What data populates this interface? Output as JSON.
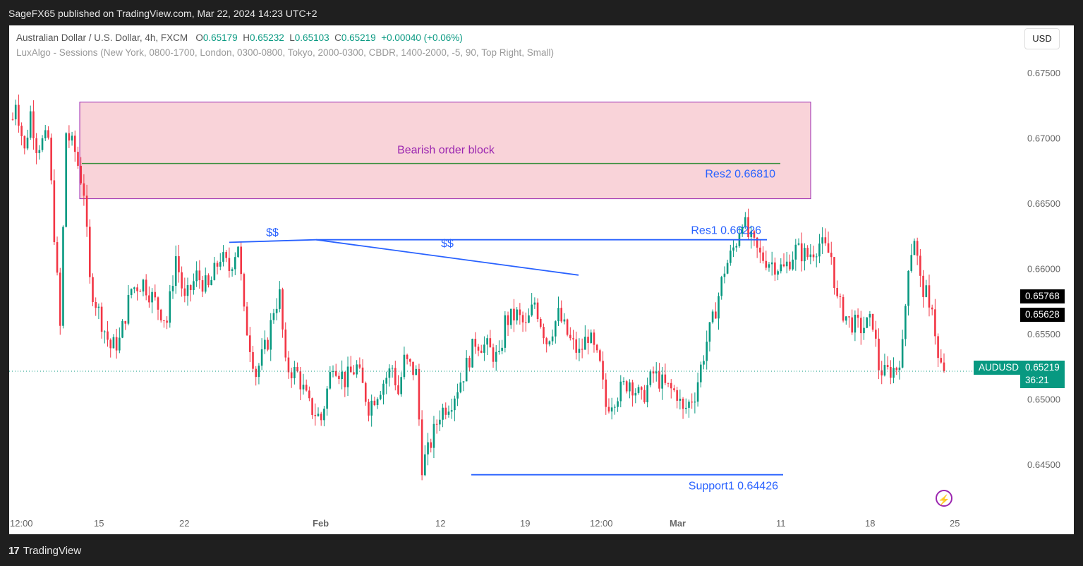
{
  "header": {
    "publisher": "SageFX65 published on TradingView.com, Mar 22, 2024 14:23 UTC+2"
  },
  "legend": {
    "symbol": "Australian Dollar / U.S. Dollar, 4h, FXCM",
    "o_label": "O",
    "o": "0.65179",
    "h_label": "H",
    "h": "0.65232",
    "l_label": "L",
    "l": "0.65103",
    "c_label": "C",
    "c": "0.65219",
    "change": "+0.00040 (+0.06%)",
    "indicator": "LuxAlgo - Sessions (New York, 0800-1700, London, 0300-0800, Tokyo, 2000-0300, CBDR, 1400-2000, -5, 90, Top Right, Small)"
  },
  "currency_button": "USD",
  "footer": {
    "brand": "TradingView",
    "brand_mark": "17"
  },
  "price_labels": {
    "p1": "0.65768",
    "p2": "0.65628",
    "symbol": "AUDUSD",
    "current": "0.65219",
    "countdown": "36:21"
  },
  "colors": {
    "up": "#089981",
    "down": "#f23645",
    "zone_fill": "#f9d3d9",
    "zone_border": "#9c27b0",
    "blue": "#2962ff",
    "green": "#388e3c"
  },
  "chart_data": {
    "type": "candlestick",
    "title": "Australian Dollar / U.S. Dollar, 4h, FXCM",
    "ylim": [
      0.642,
      0.6775
    ],
    "y_ticks": [
      "0.67500",
      "0.67000",
      "0.66500",
      "0.66000",
      "0.65500",
      "0.65000",
      "0.64500"
    ],
    "x_ticks": [
      "12:00",
      "15",
      "22",
      "Feb",
      "12",
      "19",
      "12:00",
      "Mar",
      "11",
      "18",
      "25"
    ],
    "x_ticks_bold": [
      "Feb",
      "Mar"
    ],
    "anchors": [
      [
        0,
        0.6715
      ],
      [
        1,
        0.673
      ],
      [
        4,
        0.669
      ],
      [
        6,
        0.672
      ],
      [
        8,
        0.6695
      ],
      [
        12,
        0.67
      ],
      [
        16,
        0.6555
      ],
      [
        18,
        0.6705
      ],
      [
        21,
        0.669
      ],
      [
        24,
        0.666
      ],
      [
        26,
        0.659
      ],
      [
        30,
        0.656
      ],
      [
        33,
        0.654
      ],
      [
        36,
        0.6545
      ],
      [
        40,
        0.6585
      ],
      [
        44,
        0.659
      ],
      [
        48,
        0.6575
      ],
      [
        52,
        0.656
      ],
      [
        55,
        0.661
      ],
      [
        58,
        0.6575
      ],
      [
        62,
        0.6595
      ],
      [
        66,
        0.6585
      ],
      [
        70,
        0.661
      ],
      [
        73,
        0.66
      ],
      [
        76,
        0.662
      ],
      [
        78,
        0.6565
      ],
      [
        82,
        0.652
      ],
      [
        86,
        0.6545
      ],
      [
        88,
        0.657
      ],
      [
        90,
        0.658
      ],
      [
        92,
        0.6525
      ],
      [
        96,
        0.652
      ],
      [
        100,
        0.6495
      ],
      [
        104,
        0.6485
      ],
      [
        108,
        0.653
      ],
      [
        112,
        0.6515
      ],
      [
        116,
        0.6525
      ],
      [
        120,
        0.6495
      ],
      [
        124,
        0.651
      ],
      [
        128,
        0.6525
      ],
      [
        130,
        0.6505
      ],
      [
        132,
        0.653
      ],
      [
        136,
        0.652
      ],
      [
        138,
        0.645
      ],
      [
        140,
        0.646
      ],
      [
        144,
        0.649
      ],
      [
        148,
        0.65
      ],
      [
        152,
        0.652
      ],
      [
        156,
        0.6545
      ],
      [
        160,
        0.654
      ],
      [
        164,
        0.653
      ],
      [
        166,
        0.656
      ],
      [
        170,
        0.6565
      ],
      [
        173,
        0.6555
      ],
      [
        176,
        0.6575
      ],
      [
        180,
        0.6545
      ],
      [
        184,
        0.6565
      ],
      [
        188,
        0.6545
      ],
      [
        191,
        0.6535
      ],
      [
        194,
        0.655
      ],
      [
        198,
        0.6525
      ],
      [
        200,
        0.6495
      ],
      [
        204,
        0.6505
      ],
      [
        208,
        0.6515
      ],
      [
        212,
        0.65
      ],
      [
        216,
        0.652
      ],
      [
        220,
        0.651
      ],
      [
        224,
        0.6505
      ],
      [
        226,
        0.649
      ],
      [
        230,
        0.6505
      ],
      [
        234,
        0.6545
      ],
      [
        236,
        0.656
      ],
      [
        240,
        0.66
      ],
      [
        242,
        0.661
      ],
      [
        244,
        0.6622
      ],
      [
        246,
        0.664
      ],
      [
        248,
        0.6625
      ],
      [
        252,
        0.661
      ],
      [
        256,
        0.6605
      ],
      [
        260,
        0.66
      ],
      [
        264,
        0.6615
      ],
      [
        268,
        0.661
      ],
      [
        272,
        0.662
      ],
      [
        276,
        0.661
      ],
      [
        278,
        0.6575
      ],
      [
        282,
        0.656
      ],
      [
        286,
        0.6555
      ],
      [
        290,
        0.656
      ],
      [
        292,
        0.6525
      ],
      [
        294,
        0.652
      ],
      [
        298,
        0.6525
      ],
      [
        300,
        0.654
      ],
      [
        302,
        0.6605
      ],
      [
        304,
        0.6625
      ],
      [
        306,
        0.659
      ],
      [
        308,
        0.658
      ],
      [
        309,
        0.6565
      ],
      [
        310,
        0.6575
      ],
      [
        312,
        0.653
      ],
      [
        314,
        0.6522
      ]
    ],
    "annotations": [
      {
        "type": "zone",
        "label": "Bearish order block",
        "price_top": 0.6728,
        "price_bottom": 0.6654
      },
      {
        "type": "hline",
        "label": "Res2 0.66810",
        "price": 0.6681
      },
      {
        "type": "hline",
        "label": "Res1 0.66226",
        "price": 0.66226
      },
      {
        "type": "hline",
        "label": "Support1  0.64426",
        "price": 0.64426
      },
      {
        "type": "liquidity",
        "label": "$$"
      },
      {
        "type": "liquidity",
        "label": "$$"
      }
    ],
    "current_price": 0.65219
  }
}
